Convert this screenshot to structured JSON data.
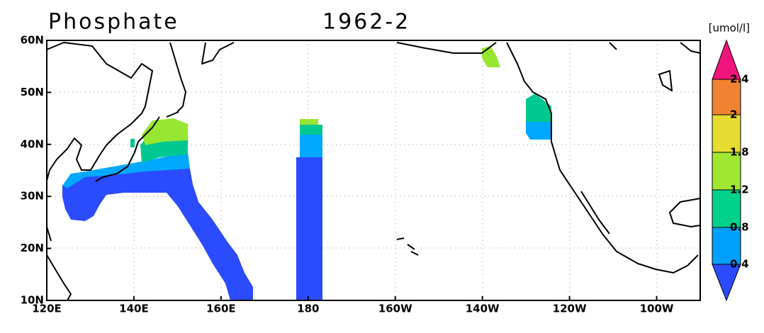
{
  "header": {
    "title": "Phosphate",
    "period": "1962-2"
  },
  "x_axis": {
    "labels": [
      "120E",
      "140E",
      "160E",
      "180",
      "160W",
      "140W",
      "120W",
      "100W"
    ]
  },
  "y_axis": {
    "labels": [
      "60N",
      "50N",
      "40N",
      "30N",
      "20N",
      "10N"
    ]
  },
  "colorbar": {
    "unit": "[umol/l]",
    "labels": [
      "2.4",
      "2",
      "1.8",
      "1.2",
      "0.8",
      "0.4"
    ]
  }
}
